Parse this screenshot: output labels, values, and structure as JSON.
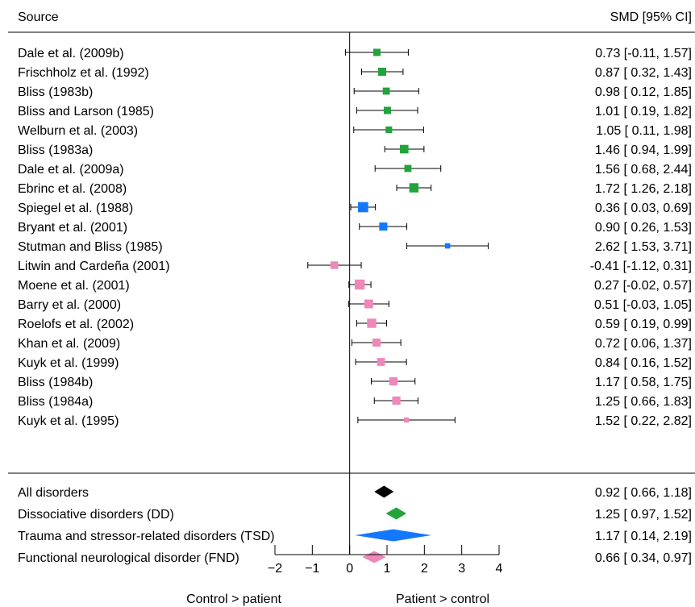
{
  "chart_data": {
    "type": "forest",
    "header_left": "Source",
    "header_right": "SMD [95% CI]",
    "xlim": [
      -2,
      4
    ],
    "x_ticks": [
      -2,
      -1,
      0,
      1,
      2,
      3,
      4
    ],
    "x_tick_labels": [
      "−2",
      "−1",
      "0",
      "1",
      "2",
      "3",
      "4"
    ],
    "reference_line": 0,
    "left_caption": "Control > patient",
    "right_caption": "Patient > control",
    "colors": {
      "DD": "#22a43a",
      "TSD": "#1478ff",
      "FND": "#ee88b8",
      "All": "#000000"
    },
    "studies": [
      {
        "source": "Dale et al. (2009b)",
        "est": 0.73,
        "lo": -0.11,
        "hi": 1.57,
        "ci": "0.73 [-0.11, 1.57]",
        "group": "DD",
        "weight": 0.42
      },
      {
        "source": "Frischholz et al. (1992)",
        "est": 0.87,
        "lo": 0.32,
        "hi": 1.43,
        "ci": "0.87 [ 0.32, 1.43]",
        "group": "DD",
        "weight": 0.5
      },
      {
        "source": "Bliss (1983b)",
        "est": 0.98,
        "lo": 0.12,
        "hi": 1.85,
        "ci": "0.98 [ 0.12, 1.85]",
        "group": "DD",
        "weight": 0.4
      },
      {
        "source": "Bliss and Larson (1985)",
        "est": 1.01,
        "lo": 0.19,
        "hi": 1.82,
        "ci": "1.01 [ 0.19, 1.82]",
        "group": "DD",
        "weight": 0.42
      },
      {
        "source": "Welburn et al. (2003)",
        "est": 1.05,
        "lo": 0.11,
        "hi": 1.98,
        "ci": "1.05 [ 0.11, 1.98]",
        "group": "DD",
        "weight": 0.35
      },
      {
        "source": "Bliss (1983a)",
        "est": 1.46,
        "lo": 0.94,
        "hi": 1.99,
        "ci": "1.46 [ 0.94, 1.99]",
        "group": "DD",
        "weight": 0.55
      },
      {
        "source": "Dale et al. (2009a)",
        "est": 1.56,
        "lo": 0.68,
        "hi": 2.44,
        "ci": "1.56 [ 0.68, 2.44]",
        "group": "DD",
        "weight": 0.4
      },
      {
        "source": "Ebrinc et al. (2008)",
        "est": 1.72,
        "lo": 1.26,
        "hi": 2.18,
        "ci": "1.72 [ 1.26, 2.18]",
        "group": "DD",
        "weight": 0.62
      },
      {
        "source": "Spiegel et al. (1988)",
        "est": 0.36,
        "lo": 0.03,
        "hi": 0.69,
        "ci": "0.36 [ 0.03, 0.69]",
        "group": "TSD",
        "weight": 0.72
      },
      {
        "source": "Bryant et al. (2001)",
        "est": 0.9,
        "lo": 0.26,
        "hi": 1.53,
        "ci": "0.90 [ 0.26, 1.53]",
        "group": "TSD",
        "weight": 0.5
      },
      {
        "source": "Stutman and Bliss (1985)",
        "est": 2.62,
        "lo": 1.53,
        "hi": 3.71,
        "ci": "2.62 [ 1.53, 3.71]",
        "group": "TSD",
        "weight": 0.22
      },
      {
        "source": "Litwin and Cardeña (2001)",
        "est": -0.41,
        "lo": -1.12,
        "hi": 0.31,
        "ci": "-0.41 [-1.12, 0.31]",
        "group": "FND",
        "weight": 0.45
      },
      {
        "source": "Moene et al. (2001)",
        "est": 0.27,
        "lo": -0.02,
        "hi": 0.57,
        "ci": "0.27 [-0.02, 0.57]",
        "group": "FND",
        "weight": 0.7
      },
      {
        "source": "Barry et al. (2000)",
        "est": 0.51,
        "lo": -0.03,
        "hi": 1.05,
        "ci": "0.51 [-0.03, 1.05]",
        "group": "FND",
        "weight": 0.58
      },
      {
        "source": "Roelofs et al. (2002)",
        "est": 0.59,
        "lo": 0.19,
        "hi": 0.99,
        "ci": "0.59 [ 0.19, 0.99]",
        "group": "FND",
        "weight": 0.62
      },
      {
        "source": "Khan et al. (2009)",
        "est": 0.72,
        "lo": 0.06,
        "hi": 1.37,
        "ci": "0.72 [ 0.06, 1.37]",
        "group": "FND",
        "weight": 0.5
      },
      {
        "source": "Kuyk et al. (1999)",
        "est": 0.84,
        "lo": 0.16,
        "hi": 1.52,
        "ci": "0.84 [ 0.16, 1.52]",
        "group": "FND",
        "weight": 0.48
      },
      {
        "source": "Bliss (1984b)",
        "est": 1.17,
        "lo": 0.58,
        "hi": 1.75,
        "ci": "1.17 [ 0.58, 1.75]",
        "group": "FND",
        "weight": 0.52
      },
      {
        "source": "Bliss (1984a)",
        "est": 1.25,
        "lo": 0.66,
        "hi": 1.83,
        "ci": "1.25 [ 0.66, 1.83]",
        "group": "FND",
        "weight": 0.52
      },
      {
        "source": "Kuyk et al. (1995)",
        "est": 1.52,
        "lo": 0.22,
        "hi": 2.82,
        "ci": "1.52 [ 0.22, 2.82]",
        "group": "FND",
        "weight": 0.2
      }
    ],
    "summaries": [
      {
        "source": "All disorders",
        "est": 0.92,
        "lo": 0.66,
        "hi": 1.18,
        "ci": "0.92 [ 0.66, 1.18]",
        "group": "All"
      },
      {
        "source": "Dissociative disorders (DD)",
        "est": 1.25,
        "lo": 0.97,
        "hi": 1.52,
        "ci": "1.25 [ 0.97, 1.52]",
        "group": "DD"
      },
      {
        "source": "Trauma and stressor-related disorders (TSD)",
        "est": 1.17,
        "lo": 0.14,
        "hi": 2.19,
        "ci": "1.17 [ 0.14, 2.19]",
        "group": "TSD"
      },
      {
        "source": "Functional neurological disorder (FND)",
        "est": 0.66,
        "lo": 0.34,
        "hi": 0.97,
        "ci": "0.66 [ 0.34, 0.97]",
        "group": "FND"
      }
    ]
  }
}
